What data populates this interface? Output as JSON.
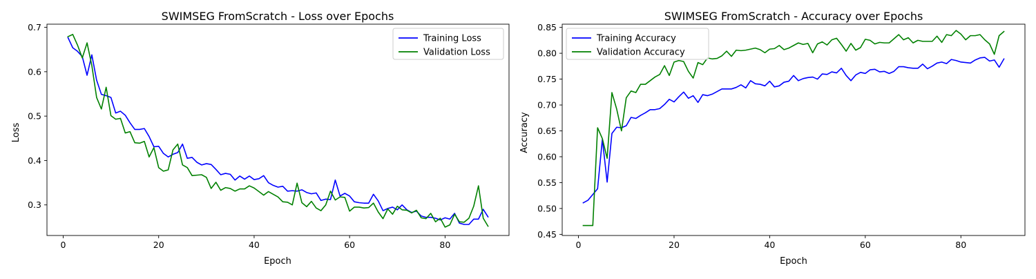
{
  "chart_data": [
    {
      "type": "line",
      "title": "SWIMSEG FromScratch - Loss over Epochs",
      "xlabel": "Epoch",
      "ylabel": "Loss",
      "xlim": [
        -3.4,
        93.4
      ],
      "ylim": [
        0.2311,
        0.7071
      ],
      "xticks": [
        0,
        20,
        40,
        60,
        80
      ],
      "yticks": [
        0.3,
        0.4,
        0.5,
        0.6,
        0.7
      ],
      "grid": false,
      "legend": "top-right",
      "series": [
        {
          "name": "Training Loss",
          "color": "#0000ff",
          "x": [
            1,
            2,
            3,
            4,
            5,
            6,
            7,
            8,
            9,
            10,
            11,
            12,
            13,
            14,
            15,
            16,
            17,
            18,
            19,
            20,
            21,
            22,
            23,
            24,
            25,
            26,
            27,
            28,
            29,
            30,
            31,
            32,
            33,
            34,
            35,
            36,
            37,
            38,
            39,
            40,
            41,
            42,
            43,
            44,
            45,
            46,
            47,
            48,
            49,
            50,
            51,
            52,
            53,
            54,
            55,
            56,
            57,
            58,
            59,
            60,
            61,
            62,
            63,
            64,
            65,
            66,
            67,
            68,
            69,
            70,
            71,
            72,
            73,
            74,
            75,
            76,
            77,
            78,
            79,
            80,
            81,
            82,
            83,
            84,
            85,
            86,
            87,
            88,
            89
          ],
          "values": [
            0.677,
            0.654,
            0.646,
            0.634,
            0.592,
            0.638,
            0.581,
            0.549,
            0.546,
            0.542,
            0.507,
            0.511,
            0.502,
            0.485,
            0.47,
            0.47,
            0.472,
            0.454,
            0.431,
            0.432,
            0.416,
            0.408,
            0.414,
            0.418,
            0.437,
            0.405,
            0.407,
            0.396,
            0.39,
            0.393,
            0.391,
            0.38,
            0.368,
            0.371,
            0.369,
            0.356,
            0.365,
            0.358,
            0.365,
            0.357,
            0.359,
            0.366,
            0.35,
            0.344,
            0.34,
            0.342,
            0.331,
            0.332,
            0.331,
            0.334,
            0.328,
            0.325,
            0.327,
            0.31,
            0.313,
            0.312,
            0.356,
            0.32,
            0.326,
            0.32,
            0.307,
            0.305,
            0.304,
            0.304,
            0.324,
            0.309,
            0.287,
            0.292,
            0.295,
            0.289,
            0.3,
            0.289,
            0.283,
            0.286,
            0.275,
            0.272,
            0.272,
            0.27,
            0.266,
            0.271,
            0.268,
            0.281,
            0.259,
            0.256,
            0.256,
            0.268,
            0.268,
            0.29,
            0.273
          ]
        },
        {
          "name": "Validation Loss",
          "color": "#008000",
          "x": [
            1,
            2,
            3,
            4,
            5,
            6,
            7,
            8,
            9,
            10,
            11,
            12,
            13,
            14,
            15,
            16,
            17,
            18,
            19,
            20,
            21,
            22,
            23,
            24,
            25,
            26,
            27,
            28,
            29,
            30,
            31,
            32,
            33,
            34,
            35,
            36,
            37,
            38,
            39,
            40,
            41,
            42,
            43,
            44,
            45,
            46,
            47,
            48,
            49,
            50,
            51,
            52,
            53,
            54,
            55,
            56,
            57,
            58,
            59,
            60,
            61,
            62,
            63,
            64,
            65,
            66,
            67,
            68,
            69,
            70,
            71,
            72,
            73,
            74,
            75,
            76,
            77,
            78,
            79,
            80,
            81,
            82,
            83,
            84,
            85,
            86,
            87,
            88,
            89
          ],
          "values": [
            0.679,
            0.684,
            0.66,
            0.631,
            0.665,
            0.614,
            0.542,
            0.516,
            0.565,
            0.501,
            0.493,
            0.495,
            0.462,
            0.465,
            0.44,
            0.439,
            0.443,
            0.408,
            0.429,
            0.384,
            0.376,
            0.379,
            0.424,
            0.437,
            0.39,
            0.384,
            0.366,
            0.367,
            0.368,
            0.362,
            0.337,
            0.351,
            0.333,
            0.339,
            0.337,
            0.331,
            0.336,
            0.336,
            0.343,
            0.338,
            0.33,
            0.322,
            0.33,
            0.324,
            0.318,
            0.307,
            0.306,
            0.3,
            0.349,
            0.305,
            0.296,
            0.308,
            0.293,
            0.287,
            0.3,
            0.331,
            0.311,
            0.318,
            0.317,
            0.286,
            0.295,
            0.295,
            0.293,
            0.294,
            0.304,
            0.284,
            0.269,
            0.291,
            0.279,
            0.297,
            0.289,
            0.288,
            0.282,
            0.288,
            0.271,
            0.269,
            0.281,
            0.262,
            0.27,
            0.25,
            0.255,
            0.279,
            0.262,
            0.261,
            0.27,
            0.297,
            0.343,
            0.27,
            0.252
          ]
        }
      ]
    },
    {
      "type": "line",
      "title": "SWIMSEG FromScratch - Accuracy over Epochs",
      "xlabel": "Epoch",
      "ylabel": "Accuracy",
      "xlim": [
        -3.4,
        93.4
      ],
      "ylim": [
        0.4478,
        0.8562
      ],
      "xticks": [
        0,
        20,
        40,
        60,
        80
      ],
      "yticks": [
        0.45,
        0.5,
        0.55,
        0.6,
        0.65,
        0.7,
        0.75,
        0.8,
        0.85
      ],
      "grid": false,
      "legend": "top-left",
      "series": [
        {
          "name": "Training Accuracy",
          "color": "#0000ff",
          "x": [
            1,
            2,
            3,
            4,
            5,
            6,
            7,
            8,
            9,
            10,
            11,
            12,
            13,
            14,
            15,
            16,
            17,
            18,
            19,
            20,
            21,
            22,
            23,
            24,
            25,
            26,
            27,
            28,
            29,
            30,
            31,
            32,
            33,
            34,
            35,
            36,
            37,
            38,
            39,
            40,
            41,
            42,
            43,
            44,
            45,
            46,
            47,
            48,
            49,
            50,
            51,
            52,
            53,
            54,
            55,
            56,
            57,
            58,
            59,
            60,
            61,
            62,
            63,
            64,
            65,
            66,
            67,
            68,
            69,
            70,
            71,
            72,
            73,
            74,
            75,
            76,
            77,
            78,
            79,
            80,
            81,
            82,
            83,
            84,
            85,
            86,
            87,
            88,
            89
          ],
          "values": [
            0.511,
            0.516,
            0.527,
            0.538,
            0.634,
            0.551,
            0.645,
            0.657,
            0.656,
            0.66,
            0.676,
            0.674,
            0.68,
            0.685,
            0.691,
            0.691,
            0.693,
            0.701,
            0.711,
            0.706,
            0.716,
            0.725,
            0.713,
            0.718,
            0.705,
            0.72,
            0.718,
            0.721,
            0.726,
            0.731,
            0.731,
            0.731,
            0.734,
            0.739,
            0.733,
            0.747,
            0.741,
            0.74,
            0.737,
            0.746,
            0.735,
            0.737,
            0.744,
            0.746,
            0.757,
            0.747,
            0.751,
            0.753,
            0.754,
            0.75,
            0.76,
            0.759,
            0.764,
            0.762,
            0.771,
            0.757,
            0.747,
            0.758,
            0.763,
            0.761,
            0.768,
            0.769,
            0.764,
            0.765,
            0.761,
            0.765,
            0.774,
            0.774,
            0.772,
            0.771,
            0.771,
            0.779,
            0.77,
            0.775,
            0.781,
            0.783,
            0.78,
            0.788,
            0.786,
            0.783,
            0.782,
            0.781,
            0.787,
            0.791,
            0.792,
            0.785,
            0.787,
            0.773,
            0.789
          ]
        },
        {
          "name": "Validation Accuracy",
          "color": "#008000",
          "x": [
            1,
            2,
            3,
            4,
            5,
            6,
            7,
            8,
            9,
            10,
            11,
            12,
            13,
            14,
            15,
            16,
            17,
            18,
            19,
            20,
            21,
            22,
            23,
            24,
            25,
            26,
            27,
            28,
            29,
            30,
            31,
            32,
            33,
            34,
            35,
            36,
            37,
            38,
            39,
            40,
            41,
            42,
            43,
            44,
            45,
            46,
            47,
            48,
            49,
            50,
            51,
            52,
            53,
            54,
            55,
            56,
            57,
            58,
            59,
            60,
            61,
            62,
            63,
            64,
            65,
            66,
            67,
            68,
            69,
            70,
            71,
            72,
            73,
            74,
            75,
            76,
            77,
            78,
            79,
            80,
            81,
            82,
            83,
            84,
            85,
            86,
            87,
            88,
            89
          ],
          "values": [
            0.467,
            0.467,
            0.467,
            0.656,
            0.635,
            0.597,
            0.724,
            0.692,
            0.65,
            0.714,
            0.727,
            0.724,
            0.74,
            0.74,
            0.747,
            0.754,
            0.759,
            0.776,
            0.757,
            0.783,
            0.786,
            0.784,
            0.765,
            0.752,
            0.782,
            0.778,
            0.791,
            0.789,
            0.79,
            0.795,
            0.804,
            0.794,
            0.806,
            0.805,
            0.806,
            0.808,
            0.81,
            0.807,
            0.801,
            0.808,
            0.809,
            0.815,
            0.807,
            0.81,
            0.815,
            0.82,
            0.817,
            0.819,
            0.801,
            0.818,
            0.822,
            0.816,
            0.826,
            0.829,
            0.817,
            0.804,
            0.819,
            0.806,
            0.811,
            0.827,
            0.825,
            0.818,
            0.821,
            0.82,
            0.82,
            0.828,
            0.836,
            0.826,
            0.83,
            0.82,
            0.825,
            0.823,
            0.823,
            0.823,
            0.833,
            0.821,
            0.836,
            0.834,
            0.844,
            0.837,
            0.826,
            0.834,
            0.834,
            0.836,
            0.826,
            0.818,
            0.798,
            0.834,
            0.842
          ]
        }
      ]
    }
  ]
}
